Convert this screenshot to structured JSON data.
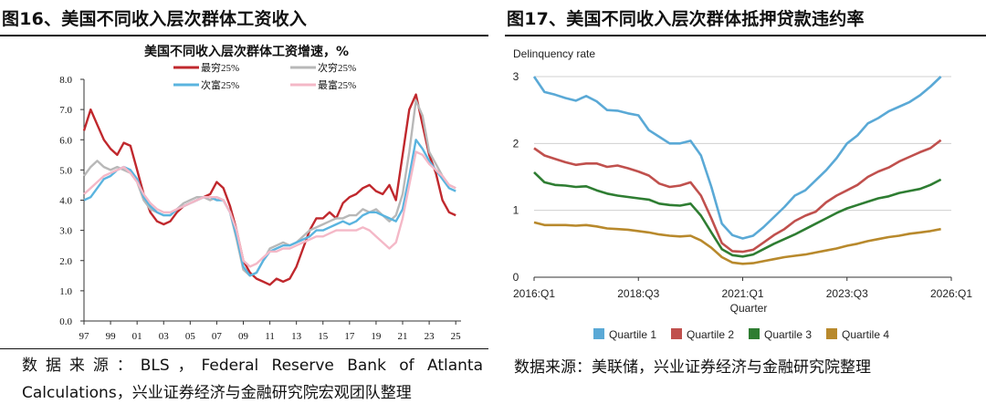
{
  "left": {
    "fig_title": "图16、美国不同收入层次群体工资收入",
    "source_line1": "数据来源：BLS，Federal Reserve Bank of Atlanta",
    "source_line2": "Calculations，兴业证券经济与金融研究院宏观团队整理"
  },
  "right": {
    "fig_title": "图17、美国不同收入层次群体抵押贷款违约率",
    "source": "数据来源：美联储，兴业证券经济与金融研究院整理"
  },
  "chart_data": [
    {
      "type": "line",
      "title": "美国不同收入层次群体工资增速，%",
      "ylim": [
        0,
        8
      ],
      "yticks": [
        "0.0",
        "1.0",
        "2.0",
        "3.0",
        "4.0",
        "5.0",
        "6.0",
        "7.0",
        "8.0"
      ],
      "xticks": [
        "97",
        "99",
        "01",
        "03",
        "05",
        "07",
        "09",
        "11",
        "13",
        "15",
        "17",
        "19",
        "21",
        "23",
        "25"
      ],
      "xlim": [
        1997,
        2025.4
      ],
      "grid": false,
      "legend_placement": "top",
      "x": [
        1997.0,
        1997.5,
        1998.0,
        1998.5,
        1999.0,
        1999.5,
        2000.0,
        2000.5,
        2001.0,
        2001.5,
        2002.0,
        2002.5,
        2003.0,
        2003.5,
        2004.0,
        2004.5,
        2005.0,
        2005.5,
        2006.0,
        2006.5,
        2007.0,
        2007.5,
        2008.0,
        2008.5,
        2009.0,
        2009.5,
        2010.0,
        2010.5,
        2011.0,
        2011.5,
        2012.0,
        2012.5,
        2013.0,
        2013.5,
        2014.0,
        2014.5,
        2015.0,
        2015.5,
        2016.0,
        2016.5,
        2017.0,
        2017.5,
        2018.0,
        2018.5,
        2019.0,
        2019.5,
        2020.0,
        2020.5,
        2021.0,
        2021.5,
        2022.0,
        2022.5,
        2023.0,
        2023.5,
        2024.0,
        2024.5,
        2025.0
      ],
      "series": [
        {
          "name": "最穷25%",
          "color": "#c0282d",
          "values": [
            6.3,
            7.0,
            6.5,
            6.0,
            5.7,
            5.5,
            5.9,
            5.8,
            5.0,
            4.2,
            3.6,
            3.3,
            3.2,
            3.3,
            3.6,
            3.8,
            3.9,
            4.0,
            4.1,
            4.2,
            4.6,
            4.4,
            3.8,
            3.0,
            2.0,
            1.6,
            1.4,
            1.3,
            1.2,
            1.4,
            1.3,
            1.4,
            1.8,
            2.4,
            3.0,
            3.4,
            3.4,
            3.6,
            3.4,
            3.9,
            4.1,
            4.2,
            4.4,
            4.5,
            4.3,
            4.2,
            4.5,
            4.0,
            5.5,
            7.0,
            7.5,
            6.5,
            5.5,
            4.9,
            4.0,
            3.6,
            3.5
          ]
        },
        {
          "name": "次穷25%",
          "color": "#b8b8b8",
          "values": [
            4.8,
            5.1,
            5.3,
            5.1,
            5.0,
            5.1,
            5.0,
            4.9,
            4.6,
            4.0,
            3.7,
            3.6,
            3.5,
            3.5,
            3.7,
            3.9,
            4.0,
            4.1,
            4.1,
            4.0,
            4.1,
            4.0,
            3.6,
            2.7,
            1.7,
            1.5,
            1.6,
            2.0,
            2.4,
            2.5,
            2.6,
            2.5,
            2.6,
            2.8,
            3.0,
            3.1,
            3.2,
            3.3,
            3.4,
            3.4,
            3.5,
            3.5,
            3.7,
            3.6,
            3.7,
            3.5,
            3.3,
            3.5,
            4.2,
            5.6,
            7.3,
            6.8,
            5.6,
            5.2,
            4.8,
            4.5,
            4.4
          ]
        },
        {
          "name": "次富25%",
          "color": "#5ab4df",
          "values": [
            4.0,
            4.1,
            4.4,
            4.7,
            4.8,
            5.0,
            5.1,
            5.0,
            4.7,
            4.1,
            3.8,
            3.6,
            3.5,
            3.5,
            3.7,
            3.8,
            3.9,
            4.0,
            4.1,
            4.1,
            4.0,
            4.0,
            3.6,
            2.8,
            1.8,
            1.5,
            1.6,
            2.0,
            2.3,
            2.4,
            2.5,
            2.5,
            2.6,
            2.7,
            2.8,
            3.0,
            3.0,
            3.1,
            3.2,
            3.3,
            3.2,
            3.3,
            3.5,
            3.6,
            3.6,
            3.5,
            3.4,
            3.3,
            3.7,
            4.8,
            6.0,
            5.7,
            5.3,
            5.0,
            4.7,
            4.4,
            4.3
          ]
        },
        {
          "name": "最富25%",
          "color": "#f4b8c7",
          "values": [
            4.2,
            4.4,
            4.6,
            4.8,
            4.9,
            5.0,
            5.1,
            4.9,
            4.6,
            4.2,
            3.9,
            3.7,
            3.6,
            3.6,
            3.7,
            3.8,
            3.9,
            4.0,
            4.1,
            4.1,
            4.1,
            4.0,
            3.6,
            3.0,
            2.0,
            1.8,
            1.9,
            2.1,
            2.3,
            2.3,
            2.4,
            2.4,
            2.5,
            2.6,
            2.7,
            2.8,
            2.8,
            2.9,
            3.0,
            3.0,
            3.0,
            3.0,
            3.1,
            3.0,
            2.8,
            2.6,
            2.4,
            2.6,
            3.4,
            4.5,
            5.6,
            5.5,
            5.2,
            5.0,
            4.8,
            4.5,
            4.4
          ]
        }
      ]
    },
    {
      "type": "line",
      "ylabel": "Delinquency rate",
      "xlabel": "Quarter",
      "ylim": [
        0,
        3
      ],
      "yticks": [
        "0",
        "1",
        "2",
        "3"
      ],
      "xticks": [
        "2016:Q1",
        "2018:Q3",
        "2021:Q1",
        "2023:Q3",
        "2026:Q1"
      ],
      "grid": true,
      "legend_placement": "bottom",
      "x": [
        "2016:Q1",
        "2016:Q2",
        "2016:Q3",
        "2016:Q4",
        "2017:Q1",
        "2017:Q2",
        "2017:Q3",
        "2017:Q4",
        "2018:Q1",
        "2018:Q2",
        "2018:Q3",
        "2018:Q4",
        "2019:Q1",
        "2019:Q2",
        "2019:Q3",
        "2019:Q4",
        "2020:Q1",
        "2020:Q2",
        "2020:Q3",
        "2020:Q4",
        "2021:Q1",
        "2021:Q2",
        "2021:Q3",
        "2021:Q4",
        "2022:Q1",
        "2022:Q2",
        "2022:Q3",
        "2022:Q4",
        "2023:Q1",
        "2023:Q2",
        "2023:Q3",
        "2023:Q4",
        "2024:Q1",
        "2024:Q2",
        "2024:Q3",
        "2024:Q4",
        "2025:Q1",
        "2025:Q2",
        "2025:Q3",
        "2025:Q4"
      ],
      "series": [
        {
          "name": "Quartile 1",
          "color": "#5aa9d6",
          "values": [
            3.0,
            2.77,
            2.73,
            2.68,
            2.64,
            2.71,
            2.63,
            2.5,
            2.49,
            2.45,
            2.42,
            2.2,
            2.1,
            2.0,
            2.0,
            2.04,
            1.82,
            1.35,
            0.8,
            0.63,
            0.58,
            0.62,
            0.75,
            0.9,
            1.05,
            1.22,
            1.3,
            1.45,
            1.6,
            1.78,
            2.0,
            2.12,
            2.3,
            2.38,
            2.48,
            2.55,
            2.62,
            2.72,
            2.85,
            3.0
          ]
        },
        {
          "name": "Quartile 2",
          "color": "#c0504d",
          "values": [
            1.93,
            1.82,
            1.77,
            1.72,
            1.68,
            1.7,
            1.7,
            1.65,
            1.67,
            1.63,
            1.58,
            1.52,
            1.4,
            1.35,
            1.37,
            1.42,
            1.22,
            0.88,
            0.51,
            0.39,
            0.38,
            0.41,
            0.52,
            0.63,
            0.72,
            0.84,
            0.92,
            0.98,
            1.12,
            1.22,
            1.3,
            1.38,
            1.5,
            1.58,
            1.64,
            1.73,
            1.8,
            1.87,
            1.93,
            2.05
          ]
        },
        {
          "name": "Quartile 3",
          "color": "#2e7d32",
          "values": [
            1.57,
            1.42,
            1.38,
            1.37,
            1.35,
            1.36,
            1.3,
            1.25,
            1.22,
            1.2,
            1.18,
            1.16,
            1.1,
            1.08,
            1.07,
            1.1,
            0.92,
            0.67,
            0.42,
            0.33,
            0.31,
            0.34,
            0.42,
            0.5,
            0.57,
            0.64,
            0.72,
            0.8,
            0.88,
            0.96,
            1.03,
            1.08,
            1.13,
            1.18,
            1.21,
            1.26,
            1.29,
            1.32,
            1.38,
            1.46
          ]
        },
        {
          "name": "Quartile 4",
          "color": "#b8892c",
          "values": [
            0.82,
            0.78,
            0.78,
            0.78,
            0.77,
            0.78,
            0.76,
            0.73,
            0.72,
            0.71,
            0.69,
            0.67,
            0.64,
            0.62,
            0.61,
            0.62,
            0.55,
            0.44,
            0.3,
            0.22,
            0.2,
            0.21,
            0.24,
            0.27,
            0.3,
            0.32,
            0.34,
            0.37,
            0.4,
            0.43,
            0.47,
            0.5,
            0.54,
            0.57,
            0.6,
            0.62,
            0.65,
            0.67,
            0.69,
            0.72
          ]
        }
      ]
    }
  ]
}
